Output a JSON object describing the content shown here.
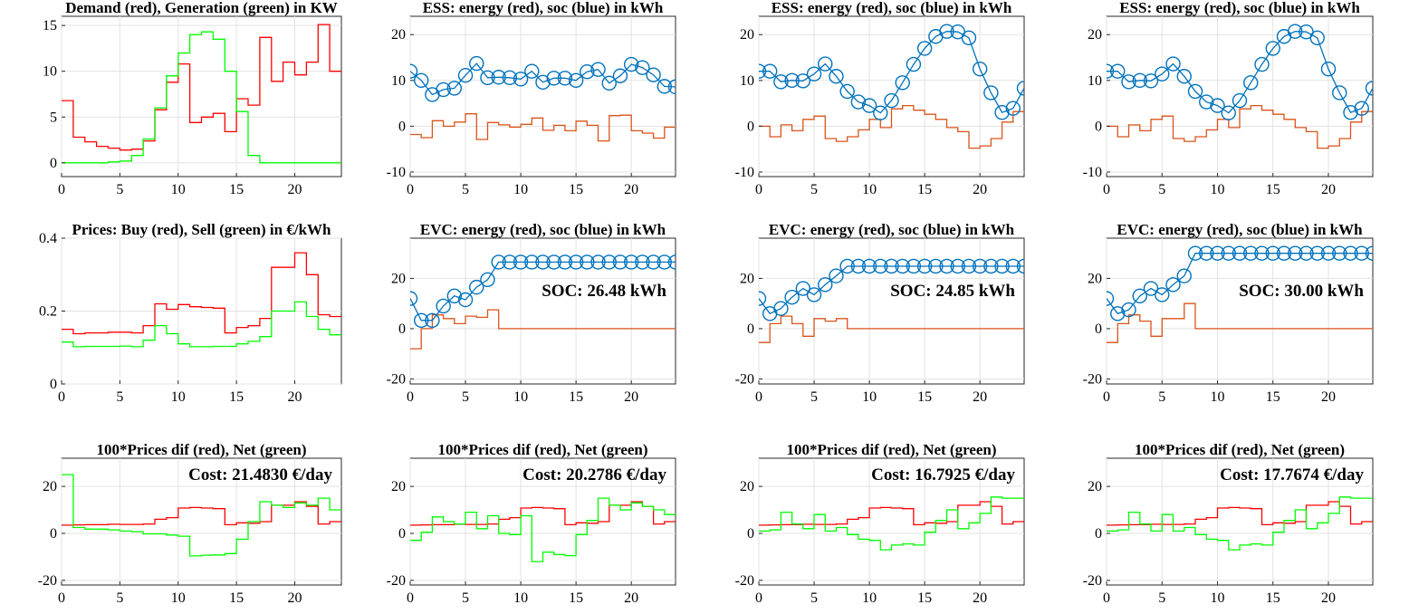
{
  "figure": {
    "suptitle": "",
    "colors": {
      "red": "#ff0000",
      "green": "#00ff00",
      "orange": "#d95319",
      "blue": "#0072bd"
    }
  },
  "chart_data": [
    {
      "id": "p11",
      "type": "line",
      "step": true,
      "title": "Demand (red), Generation (green) in KW",
      "xlim": [
        0,
        24
      ],
      "ylim": [
        -1.5,
        16
      ],
      "xticks": [
        0,
        5,
        10,
        15,
        20
      ],
      "yticks": [
        0,
        5,
        10,
        15
      ],
      "grid": true,
      "annotation": "",
      "series": [
        {
          "color": "red",
          "markers": false,
          "values": [
            6.8,
            2.8,
            2.3,
            1.8,
            1.6,
            1.4,
            1.5,
            2.4,
            5.8,
            8.8,
            10.8,
            4.4,
            5.0,
            5.4,
            3.4,
            7.0,
            6.3,
            13.7,
            8.9,
            11.0,
            9.6,
            11.0,
            15.1,
            10.0
          ]
        },
        {
          "color": "green",
          "markers": false,
          "values": [
            0.0,
            0.0,
            0.0,
            0.0,
            0.1,
            0.2,
            0.8,
            2.6,
            6.0,
            9.5,
            12.0,
            14.0,
            14.3,
            13.5,
            10.0,
            5.6,
            0.8,
            0.0,
            0.0,
            0.0,
            0.0,
            0.0,
            0.0,
            0.0
          ]
        }
      ]
    },
    {
      "id": "p12",
      "type": "line",
      "step": false,
      "title": "ESS: energy (red), soc (blue) in kWh",
      "xlim": [
        0,
        24
      ],
      "ylim": [
        -11,
        24
      ],
      "xticks": [
        0,
        5,
        10,
        15,
        20
      ],
      "yticks": [
        -10,
        0,
        10,
        20
      ],
      "grid": true,
      "annotation": "",
      "series": [
        {
          "color": "orange",
          "markers": false,
          "step": true,
          "values": [
            -1.8,
            -2.5,
            1.2,
            0.0,
            0.9,
            2.7,
            -2.9,
            0.8,
            0.3,
            -0.2,
            0.4,
            1.8,
            -0.9,
            0.2,
            -1.0,
            1.1,
            0.2,
            -3.2,
            2.3,
            2.4,
            -1.0,
            -1.5,
            -2.6,
            -0.2
          ]
        },
        {
          "color": "blue",
          "markers": true,
          "step": false,
          "values": [
            12.0,
            10.0,
            6.9,
            8.0,
            8.3,
            11.1,
            13.7,
            10.6,
            10.7,
            10.6,
            10.3,
            12.0,
            9.6,
            10.5,
            10.5,
            10.0,
            11.9,
            12.4,
            9.4,
            11.0,
            13.5,
            12.8,
            11.2,
            8.7,
            8.6
          ]
        }
      ]
    },
    {
      "id": "p13",
      "type": "line",
      "step": false,
      "title": "ESS: energy (red), soc (blue) in kWh",
      "xlim": [
        0,
        24
      ],
      "ylim": [
        -11,
        24
      ],
      "xticks": [
        0,
        5,
        10,
        15,
        20
      ],
      "yticks": [
        -10,
        0,
        10,
        20
      ],
      "grid": true,
      "annotation": "",
      "series": [
        {
          "color": "orange",
          "markers": false,
          "step": true,
          "values": [
            0.0,
            -2.3,
            0.3,
            -1.0,
            1.5,
            2.2,
            -2.7,
            -3.3,
            -2.3,
            -0.8,
            1.5,
            -0.3,
            3.8,
            4.5,
            3.5,
            2.6,
            1.5,
            -0.3,
            -1.2,
            -4.8,
            -4.3,
            -2.7,
            0.9,
            3.2
          ]
        },
        {
          "color": "blue",
          "markers": true,
          "step": false,
          "values": [
            12.0,
            12.0,
            9.7,
            10.0,
            9.9,
            11.4,
            13.6,
            10.9,
            7.6,
            5.3,
            4.5,
            2.9,
            5.6,
            9.5,
            13.5,
            17.0,
            19.6,
            20.7,
            20.6,
            19.3,
            12.5,
            7.3,
            3.0,
            3.9,
            8.3
          ]
        }
      ]
    },
    {
      "id": "p14",
      "type": "line",
      "step": false,
      "title": "ESS: energy (red), soc (blue) in kWh",
      "xlim": [
        0,
        24
      ],
      "ylim": [
        -11,
        24
      ],
      "xticks": [
        0,
        5,
        10,
        15,
        20
      ],
      "yticks": [
        -10,
        0,
        10,
        20
      ],
      "grid": true,
      "annotation": "",
      "series": [
        {
          "color": "orange",
          "markers": false,
          "step": true,
          "values": [
            0.0,
            -2.3,
            0.3,
            -1.0,
            1.5,
            2.2,
            -2.7,
            -3.3,
            -2.3,
            -0.8,
            1.5,
            -0.3,
            3.8,
            4.5,
            3.5,
            2.6,
            1.5,
            -0.3,
            -1.2,
            -4.8,
            -4.3,
            -2.7,
            0.9,
            3.2
          ]
        },
        {
          "color": "blue",
          "markers": true,
          "step": false,
          "values": [
            12.0,
            12.0,
            9.7,
            10.0,
            9.9,
            11.4,
            13.6,
            10.9,
            7.6,
            5.3,
            4.5,
            2.9,
            5.6,
            9.5,
            13.5,
            17.0,
            19.6,
            20.7,
            20.6,
            19.3,
            12.5,
            7.3,
            3.0,
            3.9,
            8.3
          ]
        }
      ]
    },
    {
      "id": "p21",
      "type": "line",
      "step": true,
      "title": "Prices: Buy (red), Sell (green) in €/kWh",
      "xlim": [
        0,
        24
      ],
      "ylim": [
        0,
        0.4
      ],
      "xticks": [
        0,
        5,
        10,
        15,
        20
      ],
      "yticks": [
        0,
        0.2,
        0.4
      ],
      "grid": true,
      "annotation": "",
      "series": [
        {
          "color": "red",
          "markers": false,
          "values": [
            0.15,
            0.138,
            0.14,
            0.14,
            0.142,
            0.142,
            0.14,
            0.16,
            0.22,
            0.205,
            0.218,
            0.212,
            0.21,
            0.208,
            0.14,
            0.155,
            0.16,
            0.18,
            0.32,
            0.32,
            0.36,
            0.3,
            0.19,
            0.185
          ]
        },
        {
          "color": "green",
          "markers": false,
          "values": [
            0.115,
            0.102,
            0.103,
            0.103,
            0.103,
            0.104,
            0.102,
            0.12,
            0.16,
            0.138,
            0.11,
            0.102,
            0.102,
            0.103,
            0.103,
            0.11,
            0.117,
            0.13,
            0.2,
            0.2,
            0.225,
            0.185,
            0.15,
            0.135
          ]
        }
      ]
    },
    {
      "id": "p22",
      "type": "line",
      "step": false,
      "title": "EVC: energy (red), soc (blue) in kWh",
      "xlim": [
        0,
        24
      ],
      "ylim": [
        -22,
        36
      ],
      "xticks": [
        0,
        5,
        10,
        15,
        20
      ],
      "yticks": [
        -20,
        0,
        20
      ],
      "grid": true,
      "annotation": "SOC: 26.48 kWh",
      "series": [
        {
          "color": "orange",
          "markers": false,
          "step": true,
          "values": [
            -8.0,
            0.0,
            5.5,
            4.0,
            2.0,
            5.0,
            4.5,
            7.5,
            0,
            0,
            0,
            0,
            0,
            0,
            0,
            0,
            0,
            0,
            0,
            0,
            0,
            0,
            0,
            0
          ]
        },
        {
          "color": "blue",
          "markers": true,
          "step": false,
          "values": [
            12.0,
            3.3,
            3.3,
            9.0,
            13.0,
            11.5,
            16.5,
            19.5,
            26.48,
            26.48,
            26.48,
            26.48,
            26.48,
            26.48,
            26.48,
            26.48,
            26.48,
            26.48,
            26.48,
            26.48,
            26.48,
            26.48,
            26.48,
            26.48,
            26.48
          ]
        }
      ]
    },
    {
      "id": "p23",
      "type": "line",
      "step": false,
      "title": "EVC: energy (red), soc (blue) in kWh",
      "xlim": [
        0,
        24
      ],
      "ylim": [
        -22,
        36
      ],
      "xticks": [
        0,
        5,
        10,
        15,
        20
      ],
      "yticks": [
        -20,
        0,
        20
      ],
      "grid": true,
      "annotation": "SOC: 24.85 kWh",
      "series": [
        {
          "color": "orange",
          "markers": false,
          "step": true,
          "values": [
            -5.5,
            2.0,
            5.0,
            2.0,
            -3.0,
            4.0,
            3.0,
            4.0,
            0,
            0,
            0,
            0,
            0,
            0,
            0,
            0,
            0,
            0,
            0,
            0,
            0,
            0,
            0,
            0
          ]
        },
        {
          "color": "blue",
          "markers": true,
          "step": false,
          "values": [
            12.0,
            6.0,
            8.0,
            12.5,
            16.0,
            13.5,
            17.5,
            21.0,
            24.85,
            24.85,
            24.85,
            24.85,
            24.85,
            24.85,
            24.85,
            24.85,
            24.85,
            24.85,
            24.85,
            24.85,
            24.85,
            24.85,
            24.85,
            24.85,
            24.85
          ]
        }
      ]
    },
    {
      "id": "p24",
      "type": "line",
      "step": false,
      "title": "EVC: energy (red), soc (blue) in kWh",
      "xlim": [
        0,
        24
      ],
      "ylim": [
        -22,
        36
      ],
      "xticks": [
        0,
        5,
        10,
        15,
        20
      ],
      "yticks": [
        -20,
        0,
        20
      ],
      "grid": true,
      "annotation": "SOC: 30.00 kWh",
      "series": [
        {
          "color": "orange",
          "markers": false,
          "step": true,
          "values": [
            -5.5,
            2.0,
            5.5,
            3.0,
            -3.0,
            4.0,
            4.0,
            10.0,
            0,
            0,
            0,
            0,
            0,
            0,
            0,
            0,
            0,
            0,
            0,
            0,
            0,
            0,
            0,
            0
          ]
        },
        {
          "color": "blue",
          "markers": true,
          "step": false,
          "values": [
            12.0,
            6.0,
            7.5,
            13.0,
            16.0,
            13.5,
            17.5,
            21.0,
            30.0,
            30.0,
            30.0,
            30.0,
            30.0,
            30.0,
            30.0,
            30.0,
            30.0,
            30.0,
            30.0,
            30.0,
            30.0,
            30.0,
            30.0,
            30.0,
            30.0
          ]
        }
      ]
    },
    {
      "id": "p31",
      "type": "line",
      "step": true,
      "title": "100*Prices dif (red), Net (green)",
      "xlim": [
        0,
        24
      ],
      "ylim": [
        -22,
        32
      ],
      "xticks": [
        0,
        5,
        10,
        15,
        20
      ],
      "yticks": [
        -20,
        0,
        20
      ],
      "grid": true,
      "annotation": "Cost: 21.4830 €/day",
      "series": [
        {
          "color": "red",
          "markers": false,
          "values": [
            3.5,
            3.6,
            3.7,
            3.7,
            3.9,
            3.8,
            3.8,
            4.0,
            6.0,
            6.7,
            10.8,
            11.0,
            10.8,
            10.5,
            3.7,
            4.5,
            4.3,
            5.0,
            12.0,
            12.0,
            13.5,
            11.5,
            4.0,
            5.0
          ]
        },
        {
          "color": "green",
          "markers": false,
          "values": [
            25.0,
            2.5,
            1.8,
            1.8,
            1.5,
            1.0,
            0.7,
            -0.2,
            -0.2,
            -0.7,
            -1.2,
            -9.6,
            -9.3,
            -9.2,
            -8.6,
            -2.5,
            5.0,
            13.5,
            12.0,
            11.0,
            13.0,
            12.0,
            15.0,
            10.0
          ]
        }
      ]
    },
    {
      "id": "p32",
      "type": "line",
      "step": true,
      "title": "100*Prices dif (red), Net (green)",
      "xlim": [
        0,
        24
      ],
      "ylim": [
        -22,
        32
      ],
      "xticks": [
        0,
        5,
        10,
        15,
        20
      ],
      "yticks": [
        -20,
        0,
        20
      ],
      "grid": true,
      "annotation": "Cost: 20.2786 €/day",
      "series": [
        {
          "color": "red",
          "markers": false,
          "values": [
            3.5,
            3.6,
            3.7,
            3.7,
            3.9,
            3.8,
            3.8,
            4.0,
            6.0,
            6.7,
            10.8,
            11.0,
            10.8,
            10.5,
            3.7,
            4.5,
            4.3,
            5.0,
            12.0,
            12.0,
            13.5,
            11.5,
            4.0,
            5.0
          ]
        },
        {
          "color": "green",
          "markers": false,
          "values": [
            -3.0,
            0.5,
            7.0,
            5.0,
            4.0,
            9.0,
            2.0,
            7.5,
            0.0,
            -0.5,
            7.5,
            -12.0,
            -8.0,
            -9.0,
            -9.5,
            -0.5,
            5.5,
            15.0,
            12.0,
            10.0,
            13.0,
            11.5,
            10.0,
            8.0
          ]
        }
      ]
    },
    {
      "id": "p33",
      "type": "line",
      "step": true,
      "title": "100*Prices dif (red), Net (green)",
      "xlim": [
        0,
        24
      ],
      "ylim": [
        -22,
        32
      ],
      "xticks": [
        0,
        5,
        10,
        15,
        20
      ],
      "yticks": [
        -20,
        0,
        20
      ],
      "grid": true,
      "annotation": "Cost: 16.7925 €/day",
      "series": [
        {
          "color": "red",
          "markers": false,
          "values": [
            3.5,
            3.6,
            3.7,
            3.7,
            3.9,
            3.8,
            3.8,
            4.0,
            6.0,
            6.7,
            10.8,
            11.0,
            10.8,
            10.5,
            3.7,
            4.5,
            4.3,
            5.0,
            12.0,
            12.0,
            13.5,
            11.5,
            4.0,
            5.0
          ]
        },
        {
          "color": "green",
          "markers": false,
          "values": [
            1.0,
            1.5,
            9.0,
            4.0,
            2.0,
            8.0,
            1.0,
            2.5,
            -0.5,
            -2.5,
            -3.0,
            -7.0,
            -5.0,
            -4.5,
            -5.0,
            0.5,
            5.5,
            10.0,
            2.0,
            4.5,
            8.5,
            15.5,
            15.0,
            15.0
          ]
        }
      ]
    },
    {
      "id": "p34",
      "type": "line",
      "step": true,
      "title": "100*Prices dif (red), Net (green)",
      "xlim": [
        0,
        24
      ],
      "ylim": [
        -22,
        32
      ],
      "xticks": [
        0,
        5,
        10,
        15,
        20
      ],
      "yticks": [
        -20,
        0,
        20
      ],
      "grid": true,
      "annotation": "Cost: 17.7674 €/day",
      "series": [
        {
          "color": "red",
          "markers": false,
          "values": [
            3.5,
            3.6,
            3.7,
            3.7,
            3.9,
            3.8,
            3.8,
            4.0,
            6.0,
            6.7,
            10.8,
            11.0,
            10.8,
            10.5,
            3.7,
            4.5,
            4.3,
            5.0,
            12.0,
            12.0,
            13.5,
            11.5,
            4.0,
            5.0
          ]
        },
        {
          "color": "green",
          "markers": false,
          "values": [
            1.0,
            1.5,
            9.0,
            4.0,
            1.0,
            8.0,
            1.0,
            2.5,
            -0.5,
            -2.5,
            -3.0,
            -7.0,
            -5.0,
            -4.5,
            -5.0,
            0.5,
            5.5,
            10.0,
            2.0,
            4.5,
            8.5,
            15.5,
            15.0,
            15.0
          ]
        }
      ]
    }
  ]
}
